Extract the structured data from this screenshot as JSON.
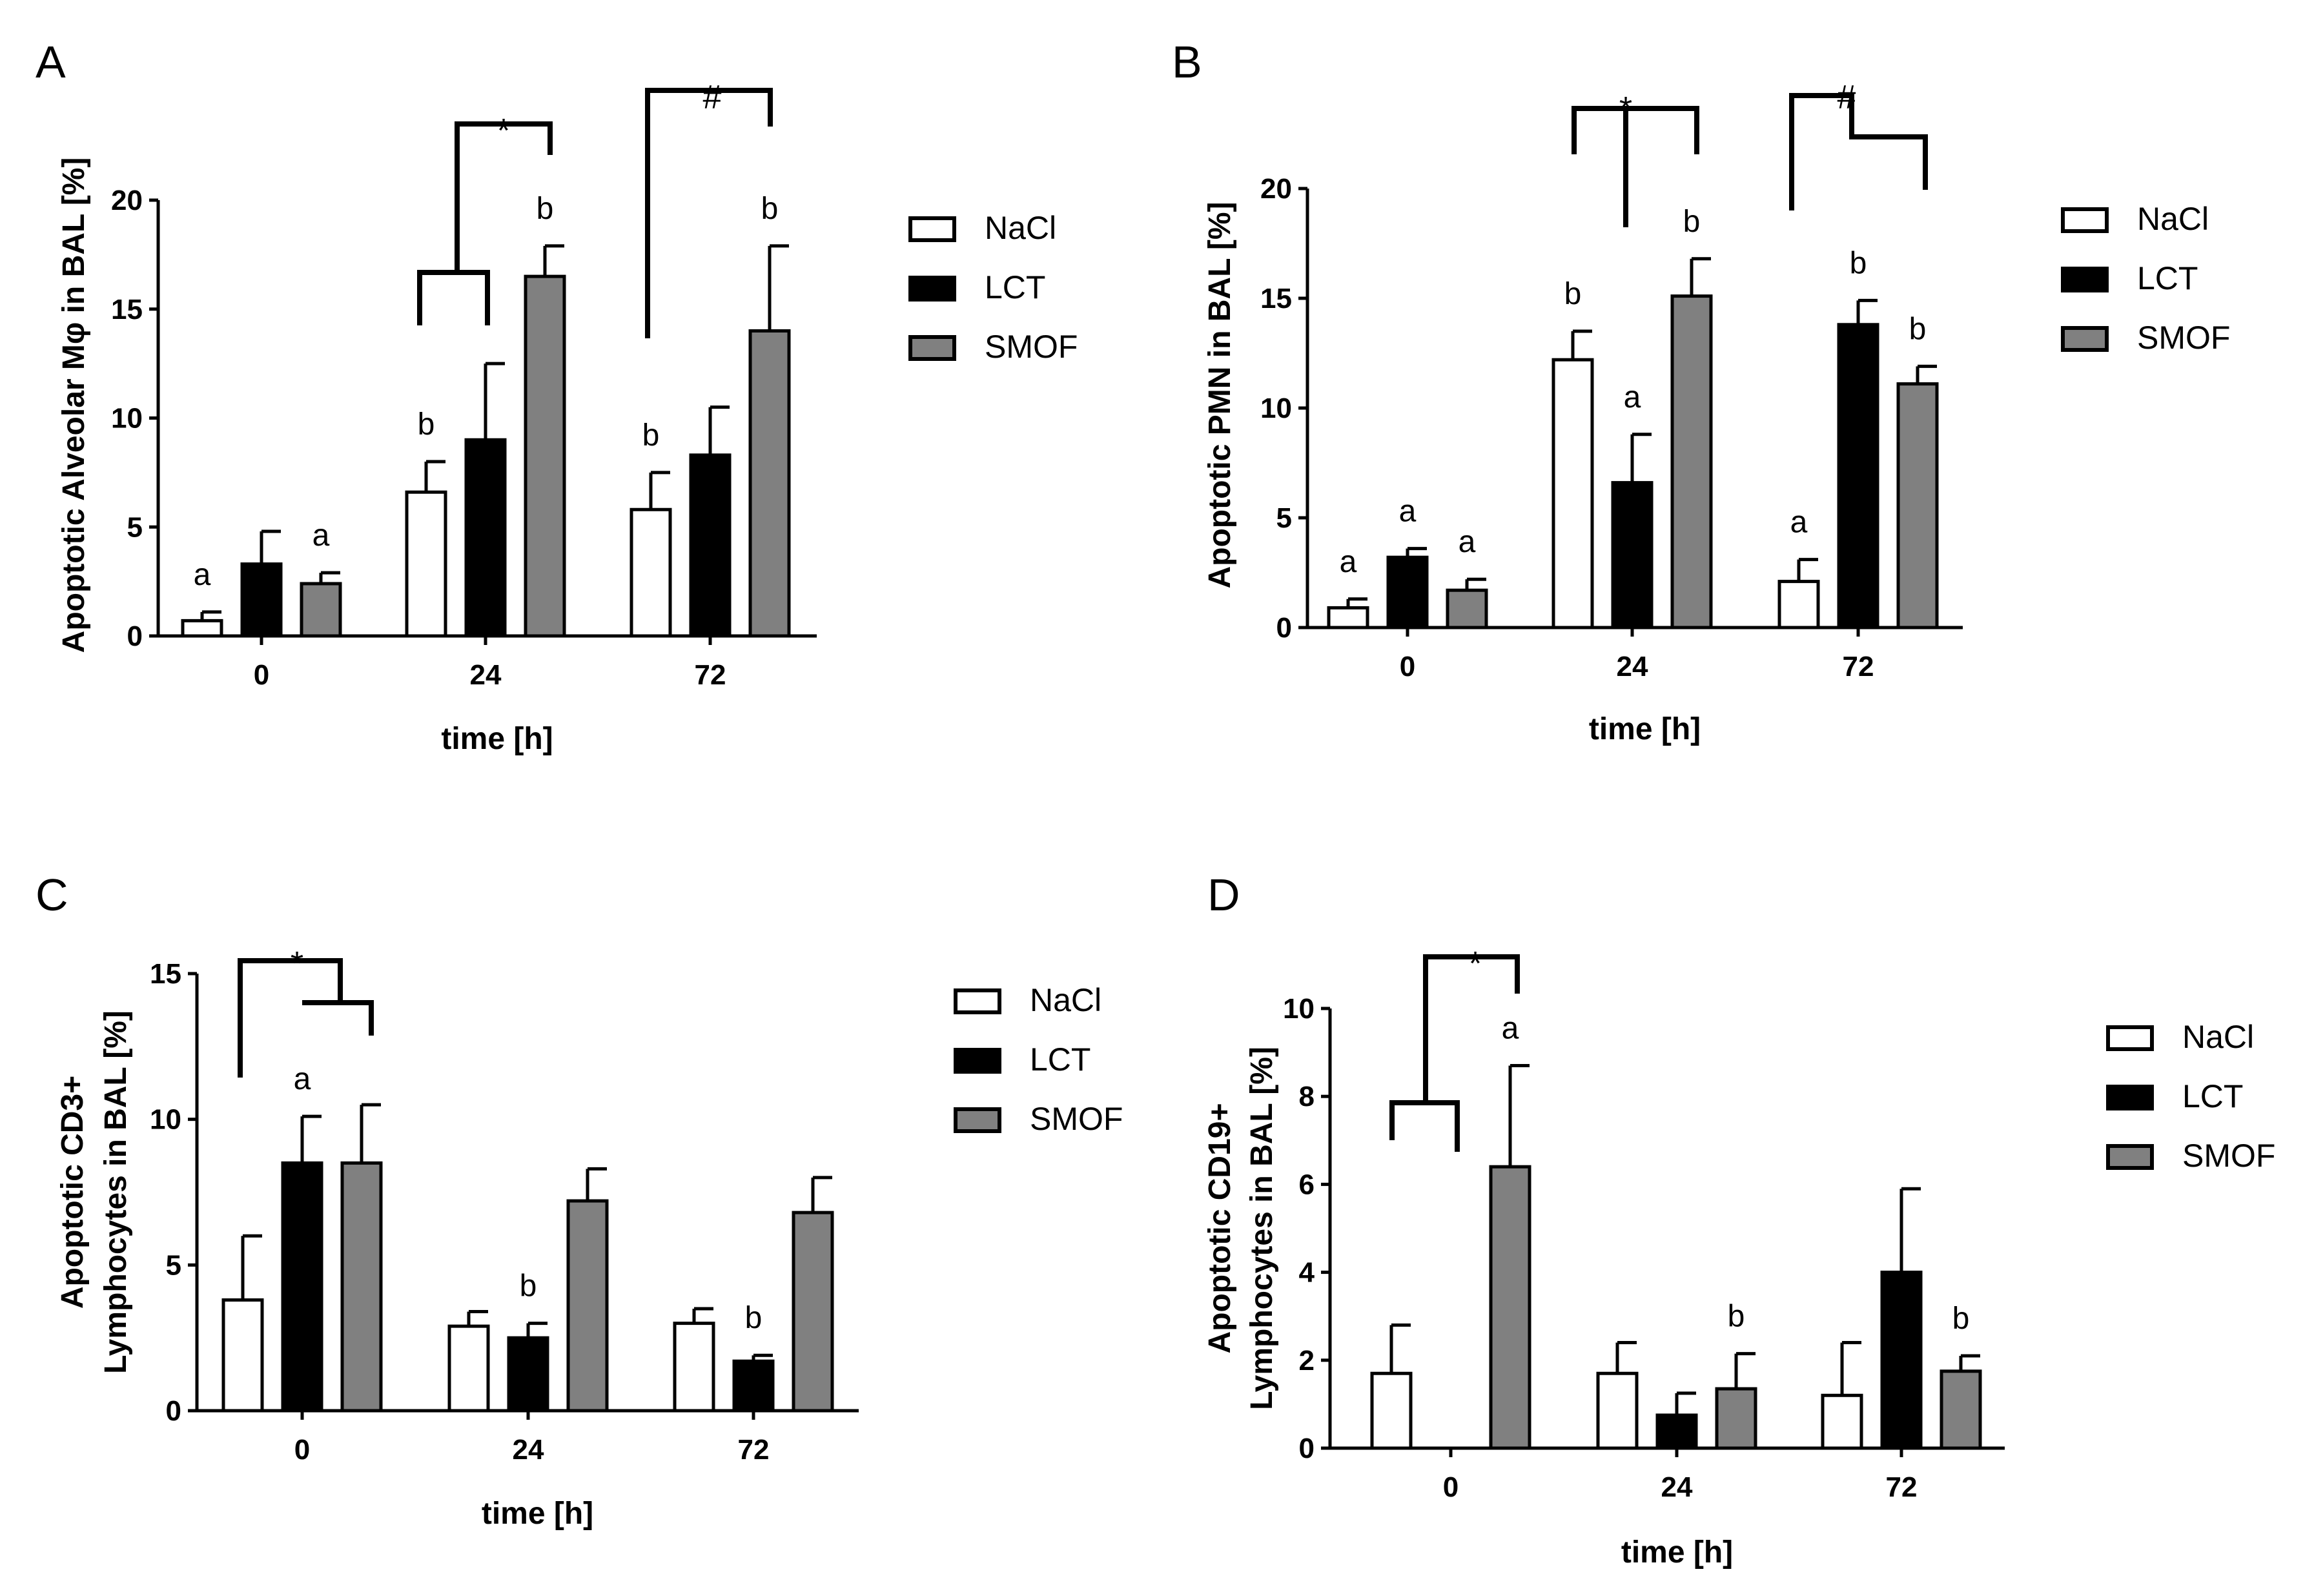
{
  "colors": {
    "NaCl": "#ffffff",
    "LCT": "#000000",
    "SMOF": "#808080"
  },
  "chart_data": [
    {
      "panel": "A",
      "type": "bar",
      "categories": [
        "0",
        "24",
        "72"
      ],
      "xlabel": "time [h]",
      "ylabel": "Apoptotic Alveolar Mφ in BAL [%]",
      "ylim": [
        0,
        20
      ],
      "yticks": [
        "0",
        "5",
        "10",
        "15",
        "20"
      ],
      "legend": [
        "NaCl",
        "LCT",
        "SMOF"
      ],
      "series": [
        {
          "name": "NaCl",
          "values": [
            0.7,
            6.6,
            5.8
          ],
          "errors": [
            0.4,
            1.4,
            1.7
          ],
          "labels": [
            "a",
            "b",
            "b"
          ]
        },
        {
          "name": "LCT",
          "values": [
            3.3,
            9.0,
            8.3
          ],
          "errors": [
            1.5,
            3.5,
            2.2
          ],
          "labels": [
            "",
            "",
            ""
          ]
        },
        {
          "name": "SMOF",
          "values": [
            2.4,
            16.5,
            14.0
          ],
          "errors": [
            0.5,
            1.4,
            3.9
          ],
          "labels": [
            "a",
            "b",
            "b"
          ]
        }
      ],
      "significance": [
        {
          "symbol": "*",
          "category": "24"
        },
        {
          "symbol": "#",
          "category": "72"
        }
      ]
    },
    {
      "panel": "B",
      "type": "bar",
      "categories": [
        "0",
        "24",
        "72"
      ],
      "xlabel": "time [h]",
      "ylabel": "Apoptotic PMN in BAL [%]",
      "ylim": [
        0,
        20
      ],
      "yticks": [
        "0",
        "5",
        "10",
        "15",
        "20"
      ],
      "legend": [
        "NaCl",
        "LCT",
        "SMOF"
      ],
      "series": [
        {
          "name": "NaCl",
          "values": [
            0.9,
            12.2,
            2.1
          ],
          "errors": [
            0.4,
            1.3,
            1.0
          ],
          "labels": [
            "a",
            "b",
            "a"
          ]
        },
        {
          "name": "LCT",
          "values": [
            3.2,
            6.6,
            13.8
          ],
          "errors": [
            0.4,
            2.2,
            1.1
          ],
          "labels": [
            "a",
            "a",
            "b"
          ]
        },
        {
          "name": "SMOF",
          "values": [
            1.7,
            15.1,
            11.1
          ],
          "errors": [
            0.5,
            1.7,
            0.8
          ],
          "labels": [
            "a",
            "b",
            "b"
          ]
        }
      ],
      "significance": [
        {
          "symbol": "*",
          "category": "24"
        },
        {
          "symbol": "#",
          "category": "72"
        }
      ]
    },
    {
      "panel": "C",
      "type": "bar",
      "categories": [
        "0",
        "24",
        "72"
      ],
      "xlabel": "time [h]",
      "ylabel": [
        "Apoptotic CD3+",
        "Lymphocytes in BAL [%]"
      ],
      "ylim": [
        0,
        15
      ],
      "yticks": [
        "0",
        "5",
        "10",
        "15"
      ],
      "legend": [
        "NaCl",
        "LCT",
        "SMOF"
      ],
      "series": [
        {
          "name": "NaCl",
          "values": [
            3.8,
            2.9,
            3.0
          ],
          "errors": [
            2.2,
            0.5,
            0.5
          ],
          "labels": [
            "",
            "",
            ""
          ]
        },
        {
          "name": "LCT",
          "values": [
            8.5,
            2.5,
            1.7
          ],
          "errors": [
            1.6,
            0.5,
            0.2
          ],
          "labels": [
            "a",
            "b",
            "b"
          ]
        },
        {
          "name": "SMOF",
          "values": [
            8.5,
            7.2,
            6.8
          ],
          "errors": [
            2.0,
            1.1,
            1.2
          ],
          "labels": [
            "",
            "",
            ""
          ]
        }
      ],
      "significance": [
        {
          "symbol": "*",
          "category": "0"
        }
      ]
    },
    {
      "panel": "D",
      "type": "bar",
      "categories": [
        "0",
        "24",
        "72"
      ],
      "xlabel": "time [h]",
      "ylabel": [
        "Apoptotic CD19+",
        "Lymphocytes in BAL [%]"
      ],
      "ylim": [
        0,
        10
      ],
      "yticks": [
        "0",
        "2",
        "4",
        "6",
        "8",
        "10"
      ],
      "legend": [
        "NaCl",
        "LCT",
        "SMOF"
      ],
      "series": [
        {
          "name": "NaCl",
          "values": [
            1.7,
            1.7,
            1.2
          ],
          "errors": [
            1.1,
            0.7,
            1.2
          ],
          "labels": [
            "",
            "",
            ""
          ]
        },
        {
          "name": "LCT",
          "values": [
            0.0,
            0.75,
            4.0
          ],
          "errors": [
            0,
            0.5,
            1.9
          ],
          "labels": [
            "",
            "",
            ""
          ]
        },
        {
          "name": "SMOF",
          "values": [
            6.4,
            1.35,
            1.75
          ],
          "errors": [
            2.3,
            0.8,
            0.35
          ],
          "labels": [
            "a",
            "b",
            "b"
          ]
        }
      ],
      "significance": [
        {
          "symbol": "*",
          "category": "0"
        }
      ]
    }
  ]
}
